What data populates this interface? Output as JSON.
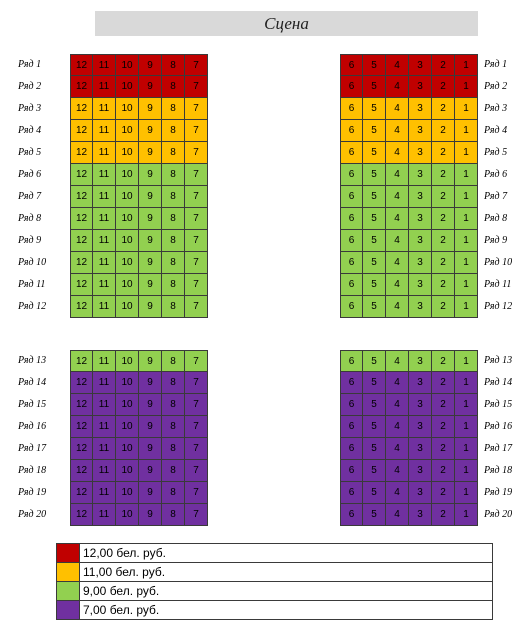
{
  "stage_label": "Сцена",
  "colors": {
    "red": "#c00000",
    "orange": "#ffc000",
    "green": "#92d050",
    "purple": "#7030a0"
  },
  "left_seats": [
    "12",
    "11",
    "10",
    "9",
    "8",
    "7"
  ],
  "right_seats": [
    "6",
    "5",
    "4",
    "3",
    "2",
    "1"
  ],
  "rows": [
    {
      "label": "Ряд 1",
      "tier": "red"
    },
    {
      "label": "Ряд 2",
      "tier": "red"
    },
    {
      "label": "Ряд 3",
      "tier": "orange"
    },
    {
      "label": "Ряд 4",
      "tier": "orange"
    },
    {
      "label": "Ряд 5",
      "tier": "orange"
    },
    {
      "label": "Ряд 6",
      "tier": "green"
    },
    {
      "label": "Ряд 7",
      "tier": "green"
    },
    {
      "label": "Ряд 8",
      "tier": "green"
    },
    {
      "label": "Ряд 9",
      "tier": "green"
    },
    {
      "label": "Ряд 10",
      "tier": "green"
    },
    {
      "label": "Ряд 11",
      "tier": "green"
    },
    {
      "label": "Ряд 12",
      "tier": "green"
    },
    {
      "label": "Ряд 13",
      "tier": "green"
    },
    {
      "label": "Ряд 14",
      "tier": "purple"
    },
    {
      "label": "Ряд 15",
      "tier": "purple"
    },
    {
      "label": "Ряд 16",
      "tier": "purple"
    },
    {
      "label": "Ряд 17",
      "tier": "purple"
    },
    {
      "label": "Ряд 18",
      "tier": "purple"
    },
    {
      "label": "Ряд 19",
      "tier": "purple"
    },
    {
      "label": "Ряд 20",
      "tier": "purple"
    }
  ],
  "legend": [
    {
      "tier": "red",
      "price": "12,00 бел. руб."
    },
    {
      "tier": "orange",
      "price": "11,00 бел. руб."
    },
    {
      "tier": "green",
      "price": "9,00 бел. руб."
    },
    {
      "tier": "purple",
      "price": "7,00 бел. руб."
    }
  ]
}
